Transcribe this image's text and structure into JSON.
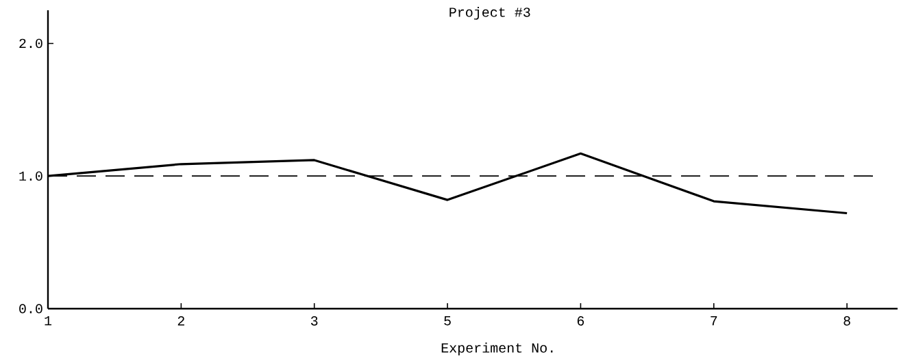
{
  "chart_data": {
    "type": "line",
    "title": "Project #3",
    "xlabel": "Experiment No.",
    "categories": [
      "1",
      "2",
      "3",
      "5",
      "6",
      "7",
      "8"
    ],
    "series": [
      {
        "color": "#000000",
        "values": [
          1.0,
          1.09,
          1.12,
          0.82,
          1.17,
          0.81,
          0.72
        ]
      }
    ],
    "ylim": [
      0,
      2.25
    ],
    "yticks": [
      {
        "value": 0,
        "label": "0.0"
      },
      {
        "value": 1,
        "label": "1.0"
      },
      {
        "value": 2,
        "label": "2.0"
      }
    ],
    "ref_lines": [
      {
        "axis": "y",
        "value": 1.0,
        "line_style": "dashed",
        "color": "#000000"
      }
    ],
    "grid": false,
    "marker": "none",
    "line_style": "solid"
  }
}
